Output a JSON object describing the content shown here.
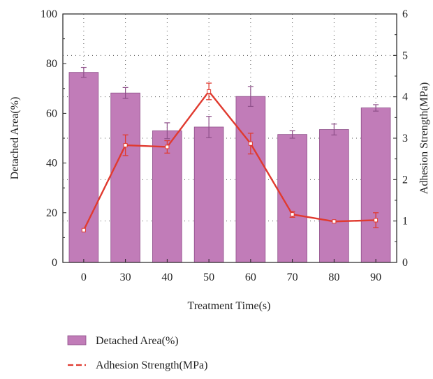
{
  "chart_data": {
    "type": "bar",
    "xlabel": "Treatment Time(s)",
    "ylabel": "Detached Area(%)",
    "y2label": "Adhesion Strength(MPa)",
    "categories": [
      "0",
      "30",
      "40",
      "50",
      "60",
      "70",
      "80",
      "90"
    ],
    "ylim": [
      0,
      100
    ],
    "y2lim": [
      0,
      6
    ],
    "yticks": [
      "0",
      "20",
      "40",
      "60",
      "80",
      "100"
    ],
    "y2ticks": [
      "0",
      "1",
      "2",
      "3",
      "4",
      "5",
      "6"
    ],
    "grid": true,
    "legend_position": "bottom",
    "series": [
      {
        "name": "Detached Area(%)",
        "type": "bar",
        "axis": "left",
        "values": [
          76.5,
          68.2,
          53.0,
          54.5,
          66.8,
          51.5,
          53.5,
          62.2
        ],
        "errors": [
          2.0,
          2.2,
          3.2,
          4.3,
          4.0,
          1.5,
          2.2,
          1.3
        ],
        "color": "#c17cb8"
      },
      {
        "name": "Adhesion Strength(MPa)",
        "type": "line",
        "axis": "right",
        "values": [
          0.78,
          2.83,
          2.79,
          4.13,
          2.87,
          1.16,
          0.99,
          1.02
        ],
        "errors": [
          0.02,
          0.25,
          0.15,
          0.2,
          0.25,
          0.07,
          0.02,
          0.18
        ],
        "color": "#e03a2f"
      }
    ]
  }
}
